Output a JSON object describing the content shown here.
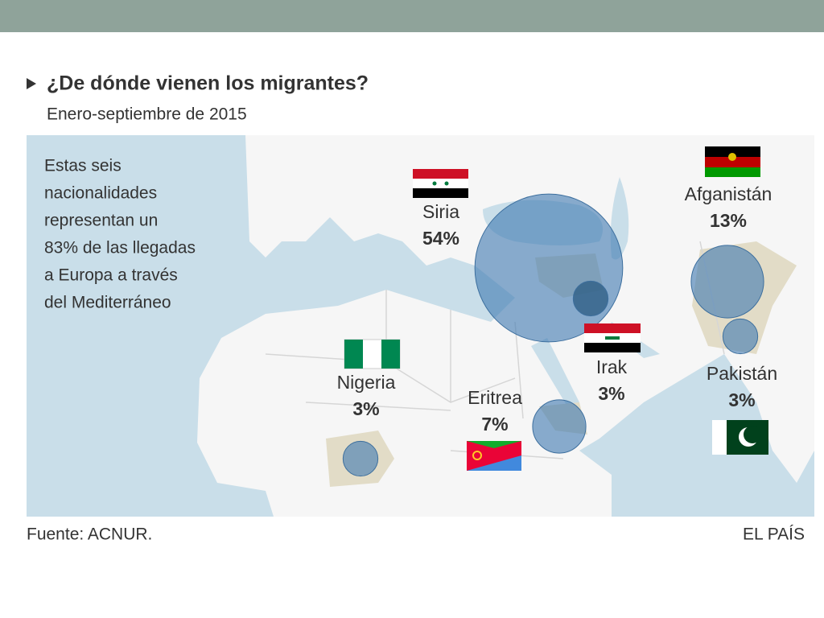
{
  "header": {
    "title": "¿De dónde vienen los migrantes?",
    "subtitle": "Enero-septiembre de 2015"
  },
  "note": {
    "lines": [
      "Estas seis",
      "nacionalidades",
      "representan un",
      "83% de las llegadas",
      "a Europa a través",
      "del Mediterráneo"
    ]
  },
  "countries": [
    {
      "name": "Siria",
      "value": 54,
      "value_label": "54%"
    },
    {
      "name": "Afganistán",
      "value": 13,
      "value_label": "13%"
    },
    {
      "name": "Irak",
      "value": 3,
      "value_label": "3%"
    },
    {
      "name": "Pakistán",
      "value": 3,
      "value_label": "3%"
    },
    {
      "name": "Eritrea",
      "value": 7,
      "value_label": "7%"
    },
    {
      "name": "Nigeria",
      "value": 3,
      "value_label": "3%"
    }
  ],
  "footer": {
    "source": "Fuente: ACNUR.",
    "brand": "EL PAÍS"
  }
}
